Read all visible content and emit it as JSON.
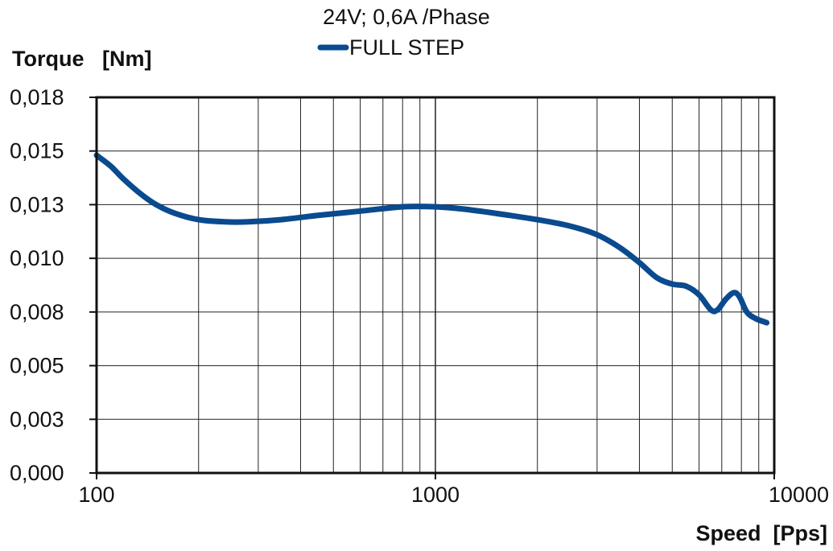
{
  "chart_data": {
    "type": "line",
    "title": "24V;  0,6A /Phase",
    "xlabel": "Speed  [Pps]",
    "ylabel": "Torque   [Nm]",
    "xscale": "log",
    "xlim": [
      100,
      10000
    ],
    "ylim": [
      0.0,
      0.0175
    ],
    "x_tick_labels": [
      "100",
      "1000",
      "10000"
    ],
    "x_tick_values": [
      100,
      1000,
      10000
    ],
    "y_tick_labels": [
      "0,000",
      "0,003",
      "0,005",
      "0,008",
      "0,010",
      "0,013",
      "0,015",
      "0,018"
    ],
    "y_tick_values": [
      0.0,
      0.0025,
      0.005,
      0.0075,
      0.01,
      0.0125,
      0.015,
      0.0175
    ],
    "grid": true,
    "legend_position": "top-center",
    "series": [
      {
        "name": "FULL STEP",
        "color": "#0a4a8f",
        "x": [
          100,
          110,
          120,
          135,
          150,
          170,
          200,
          240,
          280,
          350,
          450,
          600,
          800,
          1000,
          1200,
          1500,
          2000,
          2500,
          3000,
          3500,
          4000,
          4500,
          5000,
          5500,
          6000,
          6500,
          6800,
          7200,
          7600,
          7900,
          8300,
          8800,
          9500
        ],
        "y": [
          0.0148,
          0.0143,
          0.0137,
          0.013,
          0.0125,
          0.0121,
          0.0118,
          0.0117,
          0.0117,
          0.0118,
          0.012,
          0.0122,
          0.0124,
          0.0124,
          0.0123,
          0.0121,
          0.0118,
          0.0115,
          0.0111,
          0.0105,
          0.0098,
          0.0091,
          0.0088,
          0.0087,
          0.0083,
          0.0076,
          0.0076,
          0.0081,
          0.0084,
          0.0082,
          0.0075,
          0.0072,
          0.007
        ]
      }
    ]
  }
}
